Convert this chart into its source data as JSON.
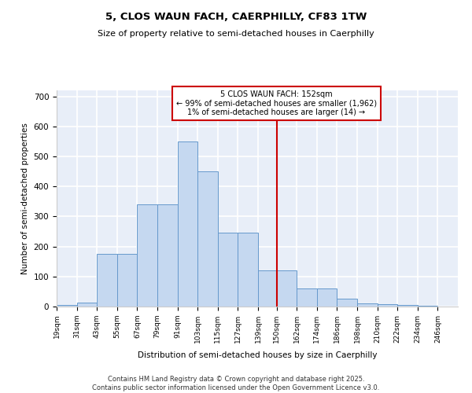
{
  "title1": "5, CLOS WAUN FACH, CAERPHILLY, CF83 1TW",
  "title2": "Size of property relative to semi-detached houses in Caerphilly",
  "xlabel": "Distribution of semi-detached houses by size in Caerphilly",
  "ylabel": "Number of semi-detached properties",
  "bin_left_edges": [
    19,
    31,
    43,
    55,
    67,
    79,
    91,
    103,
    115,
    127,
    139,
    150,
    162,
    174,
    186,
    198,
    210,
    222,
    234,
    246
  ],
  "bin_right_edges": [
    31,
    43,
    55,
    67,
    79,
    91,
    103,
    115,
    127,
    139,
    150,
    162,
    174,
    186,
    198,
    210,
    222,
    234,
    246,
    258
  ],
  "bar_heights": [
    5,
    12,
    175,
    175,
    340,
    340,
    550,
    450,
    245,
    245,
    120,
    120,
    60,
    60,
    25,
    10,
    8,
    5,
    3,
    1
  ],
  "bar_color": "#c5d8f0",
  "bar_edge_color": "#6699cc",
  "vertical_line_x": 150,
  "vertical_line_color": "#cc0000",
  "annotation_text": "5 CLOS WAUN FACH: 152sqm\n← 99% of semi-detached houses are smaller (1,962)\n1% of semi-detached houses are larger (14) →",
  "annotation_box_color": "white",
  "annotation_box_edge_color": "#cc0000",
  "background_color": "#e8eef8",
  "grid_color": "white",
  "footer_text": "Contains HM Land Registry data © Crown copyright and database right 2025.\nContains public sector information licensed under the Open Government Licence v3.0.",
  "ylim": [
    0,
    720
  ],
  "yticks": [
    0,
    100,
    200,
    300,
    400,
    500,
    600,
    700
  ],
  "xlim_left": 19,
  "xlim_right": 258
}
